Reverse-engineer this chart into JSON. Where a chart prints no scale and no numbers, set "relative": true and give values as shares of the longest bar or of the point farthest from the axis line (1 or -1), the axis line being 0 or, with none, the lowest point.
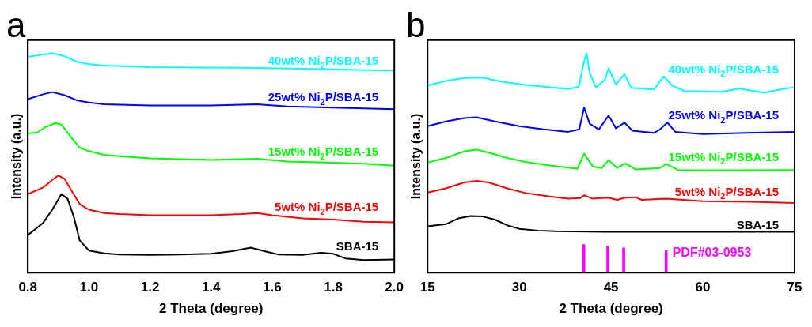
{
  "chart_data": [
    {
      "type": "line",
      "title": "a",
      "xlabel": "2 Theta (degree)",
      "ylabel": "Intensity (a.u.)",
      "relative": true,
      "xlim": [
        0.8,
        2.0
      ],
      "xticks": [
        0.8,
        {
          "value": 1,
          "label": "1.0"
        },
        1.2,
        1.4,
        1.6,
        1.8,
        {
          "value": 2,
          "label": "2.0"
        }
      ],
      "grid": false,
      "legend": false,
      "marker": "none",
      "series": [
        {
          "name": "SBA-15",
          "color": "#000000",
          "x": [
            0.8,
            0.85,
            0.88,
            0.91,
            0.93,
            0.95,
            0.97,
            1.0,
            1.05,
            1.1,
            1.2,
            1.3,
            1.4,
            1.47,
            1.53,
            1.58,
            1.62,
            1.7,
            1.76,
            1.8,
            1.84,
            1.9,
            2.0
          ],
          "values": [
            0.171,
            0.227,
            0.287,
            0.358,
            0.337,
            0.257,
            0.146,
            0.101,
            0.088,
            0.083,
            0.081,
            0.083,
            0.086,
            0.098,
            0.114,
            0.096,
            0.083,
            0.081,
            0.091,
            0.086,
            0.065,
            0.057,
            0.06
          ]
        },
        {
          "name": "5wt% Ni$_{2}$P/SBA-15",
          "color": "#ff0000",
          "x": [
            0.8,
            0.85,
            0.88,
            0.9,
            0.92,
            0.95,
            0.97,
            1.0,
            1.05,
            1.1,
            1.2,
            1.4,
            1.5,
            1.55,
            1.6,
            1.7,
            1.8,
            1.9,
            2.0
          ],
          "values": [
            0.358,
            0.388,
            0.423,
            0.443,
            0.428,
            0.358,
            0.312,
            0.287,
            0.272,
            0.267,
            0.262,
            0.262,
            0.267,
            0.272,
            0.262,
            0.247,
            0.242,
            0.232,
            0.229
          ]
        },
        {
          "name": "15wt% Ni$_{2}$P/SBA-15",
          "color": "#00ff00",
          "x": [
            0.8,
            0.83,
            0.86,
            0.89,
            0.91,
            0.94,
            0.97,
            1.0,
            1.05,
            1.1,
            1.2,
            1.4,
            1.5,
            1.55,
            1.65,
            1.8,
            1.9,
            2.0
          ],
          "values": [
            0.634,
            0.639,
            0.665,
            0.682,
            0.675,
            0.62,
            0.569,
            0.554,
            0.537,
            0.531,
            0.521,
            0.514,
            0.517,
            0.519,
            0.507,
            0.501,
            0.497,
            0.488
          ]
        },
        {
          "name": "25wt% Ni$_{2}$P/SBA-15",
          "color": "#0000ff",
          "x": [
            0.8,
            0.85,
            0.88,
            0.92,
            0.96,
            1.0,
            1.05,
            1.2,
            1.4,
            1.55,
            1.65,
            1.8,
            2.0
          ],
          "values": [
            0.791,
            0.813,
            0.823,
            0.809,
            0.786,
            0.776,
            0.768,
            0.762,
            0.762,
            0.768,
            0.758,
            0.752,
            0.745
          ]
        },
        {
          "name": "40wt% Ni$_{2}$P/SBA-15",
          "color": "#00ffff",
          "x": [
            0.8,
            0.85,
            0.88,
            0.92,
            0.96,
            1.0,
            1.05,
            1.2,
            1.5,
            1.7,
            2.0
          ],
          "values": [
            0.984,
            0.994,
            1.0,
            0.987,
            0.962,
            0.95,
            0.944,
            0.937,
            0.934,
            0.93,
            0.921
          ]
        }
      ]
    },
    {
      "type": "line",
      "title": "b",
      "xlabel": "2 Theta (degree)",
      "ylabel": "Intensity (a.u.)",
      "relative": true,
      "xlim": [
        15,
        75
      ],
      "xticks": [
        15,
        30,
        45,
        60,
        75
      ],
      "grid": false,
      "legend": false,
      "marker": "none",
      "series": [
        {
          "name": "SBA-15",
          "color": "#000000",
          "x": [
            15,
            18,
            20,
            22,
            24,
            26,
            28,
            30,
            33,
            36,
            45,
            60,
            75
          ],
          "values": [
            0.211,
            0.221,
            0.247,
            0.258,
            0.256,
            0.242,
            0.216,
            0.2,
            0.192,
            0.189,
            0.186,
            0.186,
            0.186
          ]
        },
        {
          "name": "5wt% Ni$_{2}$P/SBA-15",
          "color": "#ff0000",
          "x": [
            15,
            18,
            21,
            23,
            25,
            28,
            31,
            35,
            38,
            40,
            40.6,
            42,
            44.5,
            46,
            47.3,
            49,
            50,
            54,
            60,
            68,
            75
          ],
          "values": [
            0.365,
            0.384,
            0.411,
            0.418,
            0.411,
            0.384,
            0.363,
            0.347,
            0.337,
            0.34,
            0.353,
            0.337,
            0.342,
            0.332,
            0.342,
            0.344,
            0.332,
            0.337,
            0.326,
            0.323,
            0.318
          ]
        },
        {
          "name": "15wt% Ni$_{2}$P/SBA-15",
          "color": "#00ff00",
          "x": [
            15,
            18,
            21,
            23,
            25,
            28,
            31,
            35,
            38,
            39.5,
            40.6,
            42,
            43.5,
            44.6,
            46,
            47.3,
            49,
            53,
            54,
            56,
            60,
            75
          ],
          "values": [
            0.502,
            0.523,
            0.553,
            0.561,
            0.547,
            0.523,
            0.505,
            0.489,
            0.479,
            0.474,
            0.542,
            0.484,
            0.477,
            0.513,
            0.477,
            0.498,
            0.471,
            0.477,
            0.495,
            0.468,
            0.466,
            0.468
          ]
        },
        {
          "name": "25wt% Ni$_{2}$P/SBA-15",
          "color": "#0000ff",
          "x": [
            15,
            18,
            21,
            23,
            26,
            30,
            34,
            38,
            39.8,
            40.6,
            41.5,
            43,
            44.6,
            45.8,
            47.2,
            48.5,
            52,
            53,
            54.2,
            55.5,
            60,
            67,
            75
          ],
          "values": [
            0.668,
            0.689,
            0.705,
            0.708,
            0.689,
            0.668,
            0.653,
            0.642,
            0.653,
            0.753,
            0.679,
            0.653,
            0.716,
            0.658,
            0.684,
            0.647,
            0.637,
            0.653,
            0.684,
            0.642,
            0.632,
            0.637,
            0.642
          ]
        },
        {
          "name": "40wt% Ni$_{2}$P/SBA-15",
          "color": "#00ffff",
          "x": [
            15,
            18,
            21,
            24,
            27,
            31,
            35,
            38,
            39.7,
            40.6,
            41,
            41.5,
            42.5,
            44,
            44.6,
            45.8,
            47.2,
            48.3,
            52,
            53.6,
            55,
            57,
            63,
            66,
            70,
            73,
            75
          ],
          "values": [
            0.853,
            0.874,
            0.887,
            0.889,
            0.871,
            0.856,
            0.845,
            0.837,
            0.847,
            0.963,
            1.0,
            0.911,
            0.845,
            0.879,
            0.932,
            0.858,
            0.905,
            0.842,
            0.835,
            0.895,
            0.853,
            0.828,
            0.824,
            0.839,
            0.821,
            0.837,
            0.845
          ]
        },
        {
          "name": "PDF#03-0953",
          "type": "bar",
          "color": "#ff00ff",
          "x": [
            40.55,
            44.47,
            47.07,
            54.0
          ],
          "values": [
            0.128,
            0.12,
            0.113,
            0.1
          ]
        }
      ]
    }
  ]
}
